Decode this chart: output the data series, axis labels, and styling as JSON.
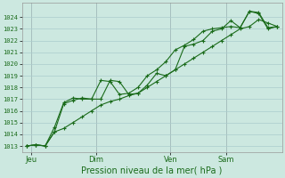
{
  "xlabel": "Pression niveau de la mer( hPa )",
  "background_color": "#cce8e0",
  "grid_color": "#aacccc",
  "line_color": "#1a6b1a",
  "tick_label_color": "#1a6b1a",
  "axis_label_color": "#1a6b1a",
  "ylim": [
    1012.5,
    1025.2
  ],
  "yticks": [
    1013,
    1014,
    1015,
    1016,
    1017,
    1018,
    1019,
    1020,
    1021,
    1022,
    1023,
    1024
  ],
  "day_labels": [
    "Jeu",
    "Dim",
    "Ven",
    "Sam"
  ],
  "day_positions": [
    0.5,
    7.5,
    15.5,
    21.5
  ],
  "vline_positions": [
    0.5,
    7.5,
    15.5,
    21.5
  ],
  "xlim": [
    -0.5,
    27.5
  ],
  "series1_x": [
    0,
    1,
    2,
    3,
    4,
    5,
    6,
    7,
    8,
    9,
    10,
    11,
    12,
    13,
    14,
    15,
    16,
    17,
    18,
    19,
    20,
    21,
    22,
    23,
    24,
    25,
    26,
    27
  ],
  "series1_y": [
    1013.0,
    1013.1,
    1013.0,
    1014.2,
    1016.6,
    1016.9,
    1017.1,
    1017.0,
    1017.0,
    1018.6,
    1018.5,
    1017.4,
    1017.5,
    1018.2,
    1019.2,
    1019.0,
    1019.5,
    1021.5,
    1021.7,
    1022.0,
    1022.8,
    1023.0,
    1023.7,
    1023.1,
    1024.5,
    1024.4,
    1023.1,
    1023.2
  ],
  "series2_x": [
    0,
    1,
    2,
    3,
    4,
    5,
    6,
    7,
    8,
    9,
    10,
    11,
    12,
    13,
    14,
    15,
    16,
    17,
    18,
    19,
    20,
    21,
    22,
    23,
    24,
    25,
    26,
    27
  ],
  "series2_y": [
    1013.0,
    1013.1,
    1013.0,
    1014.6,
    1016.7,
    1017.1,
    1017.0,
    1017.0,
    1018.6,
    1018.5,
    1017.4,
    1017.5,
    1018.0,
    1019.0,
    1019.5,
    1020.2,
    1021.2,
    1021.6,
    1022.1,
    1022.8,
    1023.0,
    1023.1,
    1023.2,
    1023.1,
    1024.5,
    1024.3,
    1023.0,
    1023.2
  ],
  "series3_x": [
    0,
    1,
    2,
    3,
    4,
    5,
    6,
    7,
    8,
    9,
    10,
    11,
    12,
    13,
    14,
    15,
    16,
    17,
    18,
    19,
    20,
    21,
    22,
    23,
    24,
    25,
    26,
    27
  ],
  "series3_y": [
    1013.0,
    1013.1,
    1013.0,
    1014.2,
    1014.5,
    1015.0,
    1015.5,
    1016.0,
    1016.5,
    1016.8,
    1017.0,
    1017.3,
    1017.5,
    1018.0,
    1018.5,
    1019.0,
    1019.5,
    1020.0,
    1020.5,
    1021.0,
    1021.5,
    1022.0,
    1022.5,
    1023.0,
    1023.2,
    1023.8,
    1023.5,
    1023.2
  ]
}
